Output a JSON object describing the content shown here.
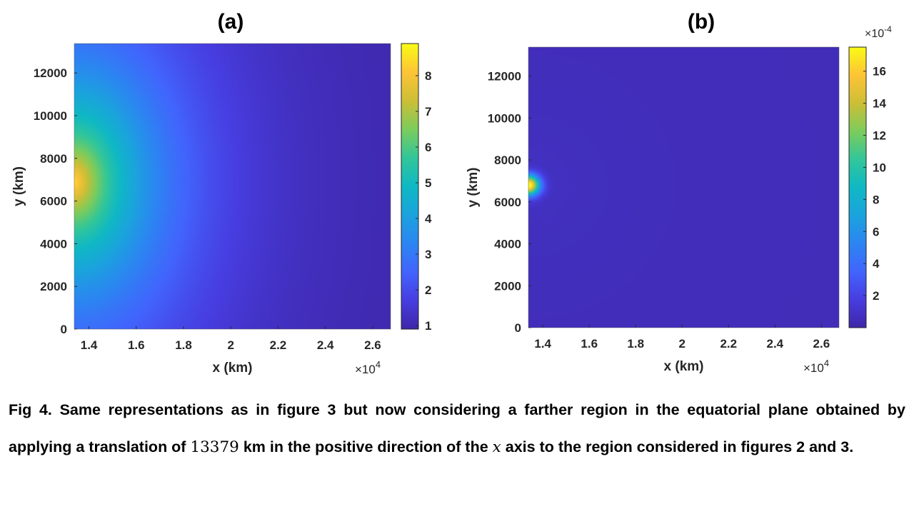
{
  "chart_data": [
    {
      "type": "heatmap",
      "title": "(a)",
      "xlabel": "x (km)",
      "ylabel": "y (km)",
      "x_exponent_label": "×10",
      "x_exponent_power": "4",
      "xlim": [
        13379,
        26758
      ],
      "ylim": [
        0,
        13379
      ],
      "x_ticks": [
        14000,
        16000,
        18000,
        20000,
        22000,
        24000,
        26000
      ],
      "x_tick_labels": [
        "1.4",
        "1.6",
        "1.8",
        "2",
        "2.2",
        "2.4",
        "2.6"
      ],
      "y_ticks": [
        0,
        2000,
        4000,
        6000,
        8000,
        10000,
        12000
      ],
      "y_tick_labels": [
        "0",
        "2000",
        "4000",
        "6000",
        "8000",
        "10000",
        "12000"
      ],
      "colorbar": {
        "range": [
          0.9,
          8.9
        ],
        "ticks": [
          1,
          2,
          3,
          4,
          5,
          6,
          7,
          8
        ],
        "tick_labels": [
          "1",
          "2",
          "3",
          "4",
          "5",
          "6",
          "7",
          "8"
        ],
        "colormap": "parula",
        "exponent_label": ""
      },
      "field": {
        "description_peak": [
          13379,
          6900
        ],
        "peak_value": 8.5,
        "edge_value": 0.95
      }
    },
    {
      "type": "heatmap",
      "title": "(b)",
      "xlabel": "x (km)",
      "ylabel": "y (km)",
      "x_exponent_label": "×10",
      "x_exponent_power": "4",
      "xlim": [
        13379,
        26758
      ],
      "ylim": [
        0,
        13379
      ],
      "x_ticks": [
        14000,
        16000,
        18000,
        20000,
        22000,
        24000,
        26000
      ],
      "x_tick_labels": [
        "1.4",
        "1.6",
        "1.8",
        "2",
        "2.2",
        "2.4",
        "2.6"
      ],
      "y_ticks": [
        0,
        2000,
        4000,
        6000,
        8000,
        10000,
        12000
      ],
      "y_tick_labels": [
        "0",
        "2000",
        "4000",
        "6000",
        "8000",
        "10000",
        "12000"
      ],
      "colorbar": {
        "range": [
          0.0,
          17.5
        ],
        "ticks": [
          2,
          4,
          6,
          8,
          10,
          12,
          14,
          16
        ],
        "tick_labels": [
          "2",
          "4",
          "6",
          "8",
          "10",
          "12",
          "14",
          "16"
        ],
        "colormap": "parula",
        "exponent_label": "×10",
        "exponent_power": "-4"
      },
      "field": {
        "description_peak": [
          13379,
          6800
        ],
        "peak_value": 17.5,
        "edge_value": 0.4
      }
    }
  ],
  "caption": {
    "part1": "Fig 4. Same representations as in figure 3 but now considering a farther region in the equatorial plane obtained by applying a translation of ",
    "number": "13379",
    "part2": " km in the positive direction of the ",
    "axis_var": "x",
    "part3": " axis to the region considered in figures 2 and 3."
  }
}
